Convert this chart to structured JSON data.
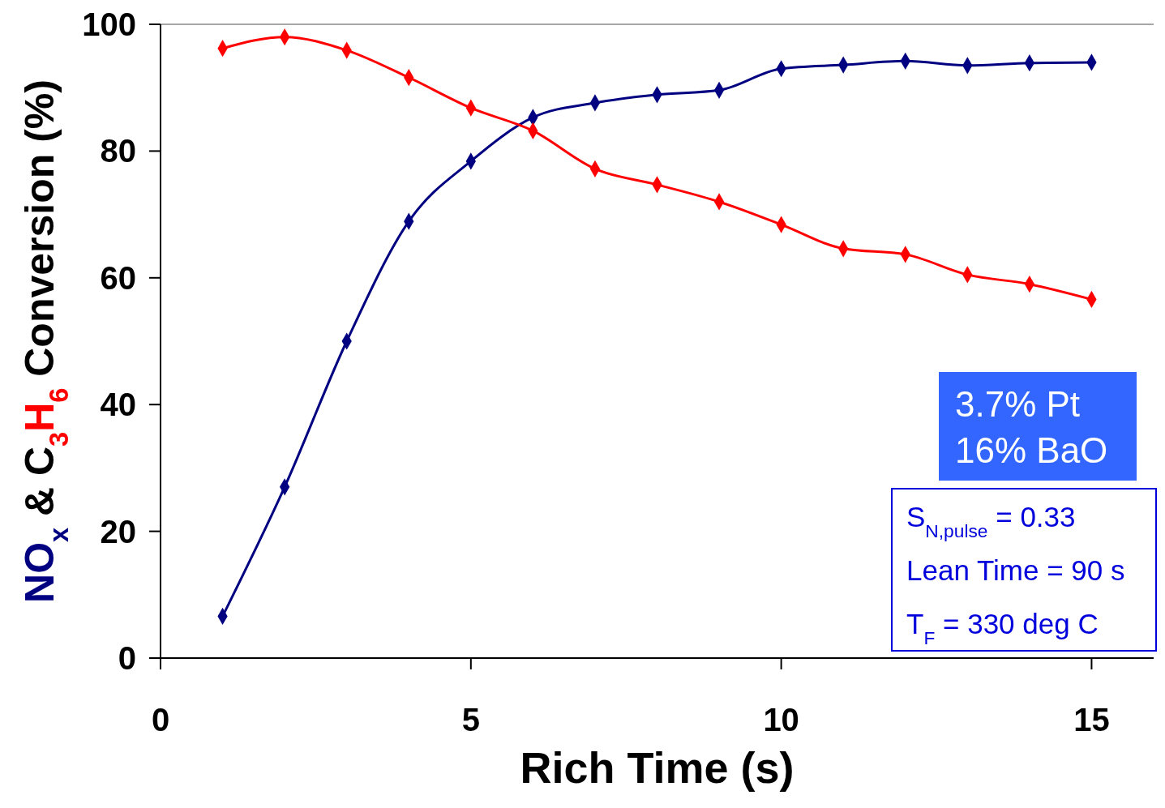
{
  "chart_data": {
    "type": "line",
    "xlabel": "Rich Time (s)",
    "ylabel": "NO$_{x}$ & C$_{3}$H$_{6}$ Conversion (%)",
    "x": [
      1,
      2,
      3,
      4,
      5,
      6,
      7,
      8,
      9,
      10,
      11,
      12,
      13,
      14,
      15
    ],
    "series": [
      {
        "color": "#000080",
        "values": [
          6.6,
          27.0,
          50.0,
          68.9,
          78.4,
          85.3,
          87.6,
          88.9,
          89.6,
          93.0,
          93.6,
          94.2,
          93.5,
          93.9,
          94.0
        ]
      },
      {
        "color": "#ff0000",
        "values": [
          96.2,
          98.0,
          95.9,
          91.6,
          86.8,
          83.2,
          77.2,
          74.7,
          72.0,
          68.4,
          64.6,
          63.7,
          60.5,
          59.0,
          56.6
        ]
      }
    ],
    "xlim": [
      0,
      16
    ],
    "xticks": [
      0,
      5,
      10,
      15
    ],
    "ylim": [
      0,
      100
    ],
    "yticks": [
      0,
      20,
      40,
      60,
      80,
      100
    ],
    "marker": "diamond",
    "grid": false,
    "annotations": [
      "3.7% Pt",
      "16% BaO",
      "S$_{N,pulse}$ = 0.33",
      "Lean Time = 90 s",
      "T$_{F}$ = 330 deg C"
    ]
  }
}
